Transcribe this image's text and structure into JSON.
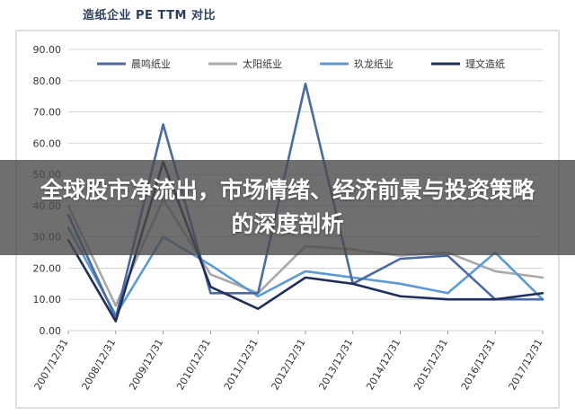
{
  "headline": "全球股市净流出，市场情绪、经济前景与投资策略的深度剖析",
  "colors": {
    "chenming": "#4a6aa5",
    "taiyang": "#a9a9a9",
    "jiulong": "#5b9bd5",
    "liwen": "#1f2f5a",
    "grid": "#d9d9d9",
    "frame": "#bfbfbf"
  },
  "chart_data": {
    "type": "line",
    "title": "造纸企业 PE TTM 对比",
    "categories": [
      "2007/12/31",
      "2008/12/31",
      "2009/12/31",
      "2010/12/31",
      "2011/12/31",
      "2012/12/31",
      "2013/12/31",
      "2014/12/31",
      "2015/12/31",
      "2016/12/31",
      "2017/12/31"
    ],
    "ylim": [
      0,
      90
    ],
    "yticks": [
      "0.00",
      "10.00",
      "20.00",
      "30.00",
      "40.00",
      "50.00",
      "60.00",
      "70.00",
      "80.00",
      "90.00"
    ],
    "grid": true,
    "legend_position": "top",
    "series": [
      {
        "name": "晨鸣纸业",
        "color_key": "chenming",
        "values": [
          37,
          4,
          66,
          12,
          12,
          79,
          15,
          23,
          24,
          10,
          10
        ]
      },
      {
        "name": "太阳纸业",
        "color_key": "taiyang",
        "values": [
          40,
          8,
          42,
          18,
          12,
          27,
          26,
          24,
          25,
          19,
          17
        ]
      },
      {
        "name": "玖龙纸业",
        "color_key": "jiulong",
        "values": [
          33,
          5,
          30,
          21,
          11,
          19,
          17,
          15,
          12,
          25,
          10
        ]
      },
      {
        "name": "理文造纸",
        "color_key": "liwen",
        "values": [
          29,
          3,
          54,
          14,
          7,
          17,
          15,
          11,
          10,
          10,
          12
        ]
      }
    ]
  }
}
